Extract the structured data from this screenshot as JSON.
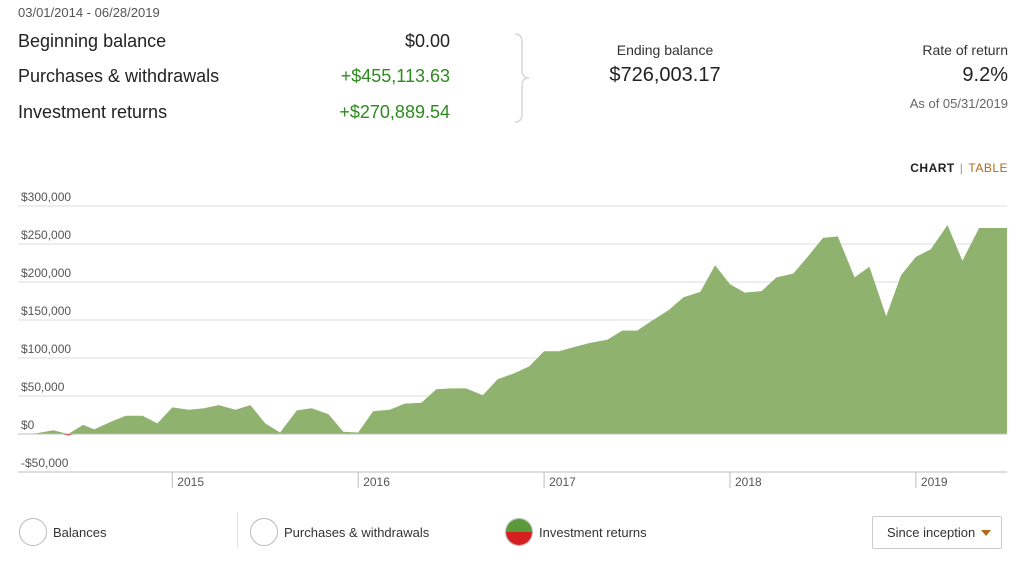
{
  "header": {
    "date_range": "03/01/2014 - 06/28/2019"
  },
  "summary": {
    "beginning_balance_label": "Beginning balance",
    "beginning_balance_value": "$0.00",
    "purchases_label": "Purchases & withdrawals",
    "purchases_value": "+$455,113.63",
    "returns_label": "Investment returns",
    "returns_value": "+$270,889.54",
    "ending_balance_label": "Ending balance",
    "ending_balance_value": "$726,003.17",
    "rate_label": "Rate of return",
    "rate_value": "9.2%",
    "rate_asof": "As of 05/31/2019"
  },
  "view_toggle": {
    "chart_label": "CHART",
    "separator": "|",
    "table_label": "TABLE"
  },
  "legend": {
    "balances_label": "Balances",
    "purchases_label": "Purchases & withdrawals",
    "returns_label": "Investment returns"
  },
  "period_select": {
    "selected": "Since inception"
  },
  "colors": {
    "area_fill": "#8fb26e",
    "negative": "#d42020",
    "positive_text": "#2e8b1f",
    "accent": "#b06a1a"
  },
  "chart_data": {
    "type": "area",
    "title": "",
    "xlabel": "",
    "ylabel": "",
    "ylim": [
      -50000,
      300000
    ],
    "grid": true,
    "yticks": [
      300000,
      250000,
      200000,
      150000,
      100000,
      50000,
      0,
      -50000
    ],
    "ytick_labels": [
      "$300,000",
      "$250,000",
      "$200,000",
      "$150,000",
      "$100,000",
      "$50,000",
      "$0",
      "-$50,000"
    ],
    "xticks": [
      2015,
      2016,
      2017,
      2018,
      2019
    ],
    "xtick_labels": [
      "2015",
      "2016",
      "2017",
      "2018",
      "2019"
    ],
    "xlim": [
      2014.17,
      2019.49
    ],
    "series": [
      {
        "name": "Investment returns",
        "x": [
          2014.17,
          2014.27,
          2014.36,
          2014.44,
          2014.52,
          2014.58,
          2014.67,
          2014.75,
          2014.84,
          2014.92,
          2015.0,
          2015.09,
          2015.17,
          2015.25,
          2015.34,
          2015.42,
          2015.5,
          2015.58,
          2015.67,
          2015.75,
          2015.84,
          2015.92,
          2016.0,
          2016.08,
          2016.17,
          2016.25,
          2016.34,
          2016.42,
          2016.5,
          2016.58,
          2016.67,
          2016.75,
          2016.84,
          2016.92,
          2017.0,
          2017.08,
          2017.17,
          2017.25,
          2017.34,
          2017.42,
          2017.5,
          2017.58,
          2017.67,
          2017.75,
          2017.84,
          2017.92,
          2018.0,
          2018.08,
          2018.17,
          2018.25,
          2018.34,
          2018.42,
          2018.5,
          2018.58,
          2018.67,
          2018.75,
          2018.84,
          2018.92,
          2019.0,
          2019.08,
          2019.17,
          2019.25,
          2019.34,
          2019.42,
          2019.49
        ],
        "values": [
          0,
          1000,
          5000,
          -2000,
          12000,
          6000,
          16000,
          24000,
          24000,
          14000,
          35000,
          32000,
          34000,
          38000,
          32000,
          38000,
          14000,
          2000,
          31000,
          34000,
          26000,
          3000,
          2000,
          30000,
          32000,
          40000,
          41000,
          59000,
          60000,
          60000,
          51000,
          72000,
          80000,
          89000,
          109000,
          109000,
          115000,
          120000,
          124000,
          136000,
          136000,
          149000,
          163000,
          180000,
          187000,
          222000,
          197000,
          186000,
          188000,
          206000,
          211000,
          234000,
          258000,
          260000,
          206000,
          220000,
          155000,
          209000,
          233000,
          243000,
          275000,
          228000,
          271000,
          271000,
          271000
        ]
      }
    ]
  }
}
